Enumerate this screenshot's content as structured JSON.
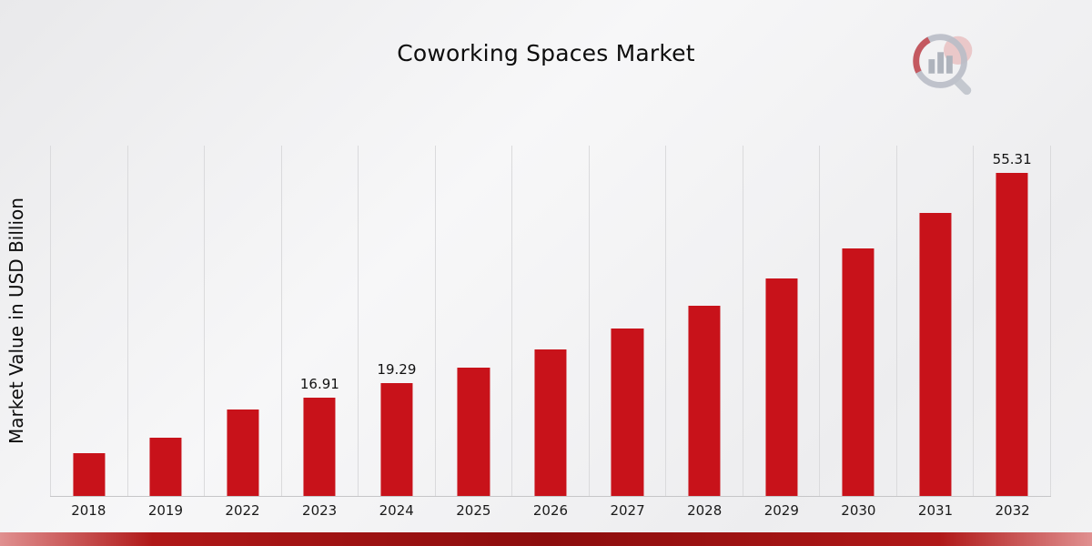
{
  "chart_data": {
    "type": "bar",
    "title": "Coworking Spaces Market",
    "xlabel": "",
    "ylabel": "Market Value in USD Billion",
    "categories": [
      "2018",
      "2019",
      "2022",
      "2023",
      "2024",
      "2025",
      "2026",
      "2027",
      "2028",
      "2029",
      "2030",
      "2031",
      "2032"
    ],
    "values": [
      7.4,
      9.9,
      14.8,
      16.91,
      19.29,
      22.0,
      25.1,
      28.6,
      32.6,
      37.2,
      42.4,
      48.4,
      55.31
    ],
    "value_labels": [
      "",
      "",
      "",
      "16.91",
      "19.29",
      "",
      "",
      "",
      "",
      "",
      "",
      "",
      "55.31"
    ],
    "ylim": [
      0,
      60
    ],
    "bar_color": "#c8121a",
    "grid": "vertical-only",
    "legend": "none"
  },
  "branding": {
    "logo_icon": "bar-chart-magnifier-logo",
    "accent_color": "#c8121a",
    "bottom_strip_color": "#8c0d0d"
  }
}
